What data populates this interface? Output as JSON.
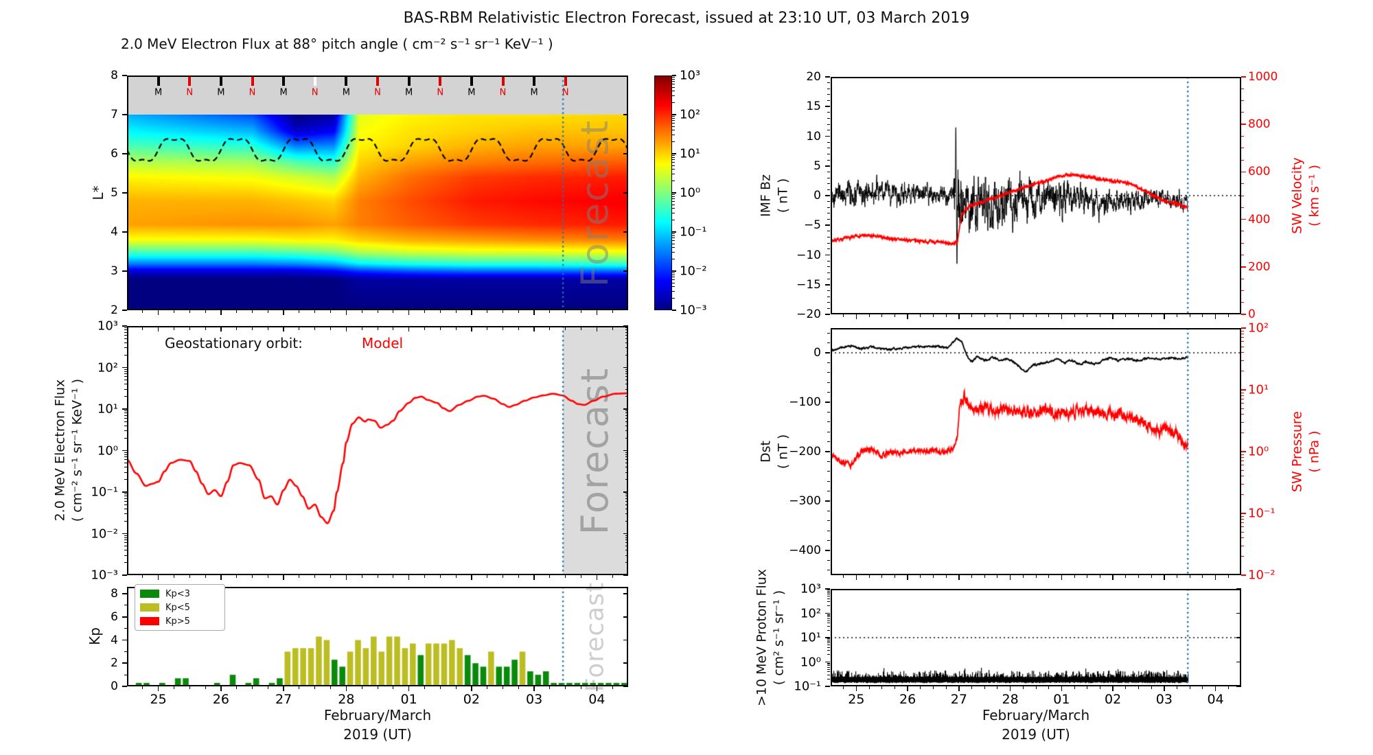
{
  "title": "BAS-RBM Relativistic Electron Forecast, issued at 23:10 UT, 03 March 2019",
  "colors": {
    "model_red": "#ff0000",
    "forecast_blue": "#1f77b4",
    "kp_green": "#0a8a0a",
    "kp_olive": "#bcbd22",
    "kp_red": "#ff0000",
    "day_night_band_gray": "#d3d3d3",
    "forecast_band_gray": "#dcdcdc",
    "marker_n_red": "#e00000",
    "axis_black": "#000000"
  },
  "xaxis": {
    "tick_labels": [
      "25",
      "26",
      "27",
      "28",
      "01",
      "02",
      "03",
      "04"
    ],
    "tick_days": [
      25,
      26,
      27,
      28,
      29,
      30,
      31,
      32
    ],
    "label_line1": "February/March",
    "label_line2": "2019 (UT)",
    "range_days": [
      24.5,
      32.5
    ]
  },
  "forecast": {
    "label": "Forecast",
    "start_day": 31.46
  },
  "panels": {
    "heatmap": {
      "title": "2.0 MeV Electron Flux at 88° pitch angle ( cm⁻² s⁻¹ sr⁻¹ KeV⁻¹ )",
      "ylabel": "L*",
      "ytick_values": [
        8,
        7,
        6,
        5,
        4,
        3,
        2
      ],
      "colorbar_tick_labels": [
        "10³",
        "10²",
        "10¹",
        "10⁰",
        "10⁻¹",
        "10⁻²",
        "10⁻³"
      ],
      "colorbar_tick_exponents": [
        3,
        2,
        1,
        0,
        -1,
        -2,
        -3
      ]
    },
    "electron_flux": {
      "annotation_black": "Geostationary orbit:",
      "annotation_red": "Model",
      "ylabel_line1": "2.0 MeV Electron Flux",
      "ylabel_line2": "( cm⁻² s⁻¹ sr⁻¹ KeV⁻¹ )",
      "ytick_labels": [
        "10³",
        "10²",
        "10¹",
        "10⁰",
        "10⁻¹",
        "10⁻²",
        "10⁻³"
      ],
      "ytick_exponents": [
        3,
        2,
        1,
        0,
        -1,
        -2,
        -3
      ]
    },
    "kp": {
      "ylabel": "Kp",
      "ytick_values": [
        8,
        6,
        4,
        2,
        0
      ],
      "legend": [
        {
          "label": "Kp<3",
          "color": "#0a8a0a"
        },
        {
          "label": "Kp<5",
          "color": "#bcbd22"
        },
        {
          "label": "Kp>5",
          "color": "#ff0000"
        }
      ]
    },
    "imf": {
      "ylabel_line1": "IMF Bz",
      "ylabel_line2": "( nT )",
      "ytick_values": [
        20,
        15,
        10,
        5,
        0,
        -5,
        -10,
        -15,
        -20
      ]
    },
    "sw_velocity": {
      "ylabel_line1": "SW Velocity",
      "ylabel_line2": "( km s⁻¹ )",
      "ytick_values": [
        1000,
        800,
        600,
        400,
        200,
        0
      ]
    },
    "dst": {
      "ylabel_line1": "Dst",
      "ylabel_line2": "( nT )",
      "ytick_values": [
        0,
        -100,
        -200,
        -300,
        -400
      ]
    },
    "sw_pressure": {
      "ylabel_line1": "SW Pressure",
      "ylabel_line2": "( nPa )",
      "ytick_labels": [
        "10²",
        "10¹",
        "10⁰",
        "10⁻¹",
        "10⁻²"
      ],
      "ytick_exponents": [
        2,
        1,
        0,
        -1,
        -2
      ]
    },
    "proton": {
      "ylabel_line1": ">10 MeV Proton Flux",
      "ylabel_line2": "( cm² s⁻¹ sr⁻¹ )",
      "ytick_labels": [
        "10³",
        "10²",
        "10¹",
        "10⁰",
        "10⁻¹"
      ],
      "ytick_exponents": [
        3,
        2,
        1,
        0,
        -1
      ]
    }
  },
  "chart_data": [
    {
      "id": "electron_flux_heatmap",
      "type": "heatmap",
      "title": "2.0 MeV Electron Flux at 88° pitch angle",
      "units": "cm⁻² s⁻¹ sr⁻¹ KeV⁻¹",
      "xlabel": "February/March 2019 (UT)",
      "ylabel": "L*",
      "x_range_days": [
        24.5,
        32.5
      ],
      "y_range_lstar": [
        2,
        7
      ],
      "color_scale": {
        "type": "log10",
        "range": [
          -3,
          3
        ],
        "palette": "jet"
      },
      "grid": {
        "days": [
          24.5,
          26.5,
          27.2,
          27.8,
          28.2,
          29.0,
          30.0,
          31.0,
          32.5
        ],
        "lstar": [
          2.0,
          2.8,
          3.0,
          3.2,
          3.5,
          3.8,
          4.2,
          4.8,
          5.4,
          5.8,
          6.2,
          6.6,
          7.0
        ],
        "log10_flux": [
          [
            -3,
            -3,
            -2.5,
            -1.5,
            -0.3,
            0.7,
            1.3,
            1.2,
            0.8,
            0.3,
            -0.3,
            -0.8,
            -1.2
          ],
          [
            -3,
            -3,
            -2.5,
            -1.5,
            -0.3,
            0.7,
            1.4,
            1.2,
            0.7,
            0.2,
            -0.5,
            -1.2,
            -1.8
          ],
          [
            -3,
            -3,
            -2.5,
            -1.4,
            -0.2,
            0.8,
            1.4,
            1.1,
            0.5,
            -0.3,
            -1.5,
            -2.6,
            -3.0
          ],
          [
            -3,
            -3,
            -2.3,
            -1.2,
            0.0,
            0.8,
            1.3,
            1.0,
            0.3,
            -0.5,
            -1.4,
            -2.3,
            -2.8
          ],
          [
            -3,
            -2.8,
            -2.0,
            -0.8,
            0.3,
            1.0,
            1.5,
            1.5,
            1.2,
            1.0,
            0.8,
            0.7,
            0.6
          ],
          [
            -3,
            -2.8,
            -1.8,
            -0.6,
            0.5,
            1.2,
            1.7,
            1.8,
            1.6,
            1.3,
            1.0,
            0.9,
            0.8
          ],
          [
            -3,
            -2.8,
            -1.7,
            -0.5,
            0.6,
            1.3,
            1.9,
            2.1,
            1.9,
            1.5,
            1.2,
            1.0,
            0.9
          ],
          [
            -3,
            -2.8,
            -1.7,
            -0.5,
            0.6,
            1.4,
            2.0,
            2.2,
            2.0,
            1.6,
            1.3,
            1.1,
            0.9
          ],
          [
            -3,
            -2.8,
            -1.7,
            -0.4,
            0.7,
            1.5,
            2.1,
            2.3,
            2.1,
            1.7,
            1.3,
            1.1,
            1.0
          ]
        ]
      },
      "orbit_line": {
        "base_lstar": 6.1,
        "daily_amplitude": 0.32,
        "harmonic3_amplitude": 0.07,
        "period_days": 1
      },
      "day_night_markers": {
        "start_day": 25.0,
        "step_days": 0.5,
        "count": 14,
        "labels": [
          "M",
          "N"
        ],
        "white_tick_day": 27.5
      }
    },
    {
      "id": "electron_flux_geo",
      "type": "line",
      "series_label": "Model",
      "color": "#ff0000",
      "ylim_log10": [
        -3,
        3
      ],
      "t_days": [
        24.5,
        24.65,
        24.8,
        24.9,
        25.0,
        25.1,
        25.2,
        25.35,
        25.5,
        25.6,
        25.7,
        25.8,
        25.9,
        26.0,
        26.1,
        26.2,
        26.3,
        26.45,
        26.6,
        26.7,
        26.8,
        26.9,
        27.0,
        27.1,
        27.2,
        27.3,
        27.4,
        27.5,
        27.6,
        27.7,
        27.8,
        27.85,
        27.95,
        28.0,
        28.1,
        28.2,
        28.3,
        28.35,
        28.45,
        28.55,
        28.65,
        28.75,
        28.85,
        29.0,
        29.1,
        29.2,
        29.3,
        29.45,
        29.55,
        29.65,
        29.8,
        29.95,
        30.1,
        30.2,
        30.35,
        30.5,
        30.6,
        30.7,
        30.85,
        31.0,
        31.15,
        31.3,
        31.45,
        31.6,
        31.7,
        31.8,
        31.95,
        32.1,
        32.3,
        32.5
      ],
      "log10_flux": [
        -0.22,
        -0.55,
        -0.85,
        -0.8,
        -0.75,
        -0.5,
        -0.3,
        -0.22,
        -0.25,
        -0.5,
        -0.8,
        -1.05,
        -0.95,
        -1.1,
        -0.75,
        -0.35,
        -0.3,
        -0.35,
        -0.7,
        -1.15,
        -1.1,
        -1.3,
        -0.95,
        -0.7,
        -0.85,
        -1.1,
        -1.4,
        -1.3,
        -1.6,
        -1.75,
        -1.45,
        -1.0,
        -0.3,
        0.2,
        0.65,
        0.8,
        0.7,
        0.75,
        0.72,
        0.55,
        0.62,
        0.72,
        0.95,
        1.15,
        1.27,
        1.3,
        1.22,
        1.15,
        1.02,
        0.95,
        1.1,
        1.2,
        1.3,
        1.32,
        1.25,
        1.12,
        1.05,
        1.1,
        1.2,
        1.28,
        1.33,
        1.37,
        1.33,
        1.2,
        1.12,
        1.1,
        1.2,
        1.3,
        1.37,
        1.38
      ]
    },
    {
      "id": "kp",
      "type": "bar",
      "ylabel": "Kp",
      "ylim": [
        0,
        9
      ],
      "bin_days": 0.125,
      "t_start_day": 24.5,
      "color_rule": {
        "lt3": "#0a8a0a",
        "lt5": "#bcbd22",
        "gt5": "#ff0000"
      },
      "values": [
        0,
        0.3,
        0.3,
        0,
        0.3,
        0,
        0.7,
        0.7,
        0,
        0,
        0,
        0.3,
        0,
        1.0,
        0,
        0.3,
        0.7,
        0,
        0.3,
        0.7,
        3.0,
        3.3,
        3.3,
        3.3,
        4.3,
        4.0,
        2.3,
        1.7,
        3.0,
        4.0,
        3.3,
        4.3,
        3.0,
        4.3,
        4.3,
        3.3,
        3.7,
        2.7,
        3.7,
        3.7,
        3.7,
        4.0,
        3.3,
        2.7,
        2.0,
        1.7,
        3.0,
        1.7,
        1.7,
        2.3,
        3.0,
        1.3,
        1.0,
        1.3,
        0.3,
        0.3,
        0.3,
        0.3,
        0.3,
        0.3,
        0.3,
        0.3,
        0.3,
        0.3
      ]
    },
    {
      "id": "imf_bz",
      "type": "line-noisy",
      "color": "#000000",
      "ylim_nT": [
        -20,
        20
      ],
      "envelope_t": [
        24.5,
        25.5,
        26.5,
        26.88,
        26.95,
        27.1,
        27.4,
        27.8,
        28.2,
        28.7,
        29.2,
        29.6,
        30.0,
        30.5,
        31.0,
        31.46
      ],
      "envelope_mean_nT": [
        0.3,
        0.5,
        0.2,
        0.2,
        -0.5,
        -1.0,
        -1.5,
        -1.0,
        -0.8,
        0.0,
        -0.5,
        -1.2,
        -1.0,
        -0.8,
        -0.3,
        -1.2
      ],
      "envelope_amp_nT": [
        3.2,
        3.2,
        2.4,
        2.2,
        11.5,
        7.5,
        7.5,
        6.5,
        5.5,
        5.0,
        4.5,
        4.0,
        3.2,
        2.8,
        2.5,
        2.2
      ],
      "spike": {
        "t_day": 26.95,
        "max_nT": 11.5,
        "min_nT": -11.5
      },
      "zero_guide_line": 0
    },
    {
      "id": "sw_velocity",
      "type": "line",
      "color": "#ff0000",
      "ylim_km_s": [
        0,
        1000
      ],
      "t_days": [
        24.5,
        24.8,
        25.1,
        25.4,
        25.7,
        26.0,
        26.3,
        26.6,
        26.9,
        26.97,
        27.05,
        27.2,
        27.4,
        27.6,
        27.9,
        28.2,
        28.5,
        28.8,
        29.0,
        29.2,
        29.4,
        29.6,
        29.8,
        30.0,
        30.2,
        30.4,
        30.6,
        30.8,
        31.0,
        31.2,
        31.46
      ],
      "km_s": [
        310,
        320,
        332,
        328,
        318,
        312,
        308,
        303,
        298,
        305,
        420,
        455,
        470,
        485,
        505,
        530,
        550,
        570,
        585,
        590,
        582,
        575,
        568,
        562,
        558,
        545,
        522,
        500,
        480,
        468,
        450
      ]
    },
    {
      "id": "dst",
      "type": "line",
      "color": "#000000",
      "ylim_nT": [
        -450,
        50
      ],
      "zero_guide_line": 0,
      "t_days": [
        24.5,
        24.7,
        24.9,
        25.1,
        25.3,
        25.6,
        25.9,
        26.2,
        26.5,
        26.8,
        26.95,
        27.05,
        27.15,
        27.25,
        27.35,
        27.5,
        27.65,
        27.8,
        27.95,
        28.1,
        28.2,
        28.3,
        28.45,
        28.6,
        28.75,
        28.9,
        29.05,
        29.2,
        29.35,
        29.5,
        29.65,
        29.8,
        29.95,
        30.1,
        30.3,
        30.5,
        30.7,
        30.9,
        31.1,
        31.3,
        31.46
      ],
      "nT": [
        5,
        10,
        14,
        8,
        12,
        6,
        10,
        12,
        14,
        10,
        30,
        22,
        -5,
        -18,
        -8,
        -16,
        -10,
        -14,
        -12,
        -20,
        -30,
        -40,
        -25,
        -22,
        -18,
        -12,
        -20,
        -15,
        -22,
        -18,
        -24,
        -16,
        -10,
        -16,
        -12,
        -16,
        -10,
        -13,
        -10,
        -13,
        -8
      ]
    },
    {
      "id": "sw_pressure",
      "type": "line",
      "color": "#ff0000",
      "ylim_log10_nPa": [
        -2,
        2
      ],
      "t_days": [
        24.5,
        24.7,
        24.9,
        25.1,
        25.3,
        25.5,
        25.7,
        25.9,
        26.1,
        26.3,
        26.5,
        26.7,
        26.9,
        26.97,
        27.03,
        27.1,
        27.2,
        27.35,
        27.5,
        27.7,
        27.9,
        28.1,
        28.4,
        28.7,
        29.0,
        29.3,
        29.6,
        29.9,
        30.1,
        30.4,
        30.7,
        30.9,
        31.1,
        31.3,
        31.46
      ],
      "nPa": [
        0.95,
        0.7,
        0.6,
        1.0,
        1.1,
        0.85,
        1.0,
        0.95,
        1.05,
        1.0,
        1.05,
        1.0,
        1.1,
        1.8,
        6.0,
        8.5,
        5.0,
        4.5,
        5.0,
        4.6,
        4.8,
        4.5,
        4.3,
        4.6,
        4.2,
        4.5,
        4.8,
        4.0,
        4.2,
        3.4,
        2.6,
        2.1,
        2.4,
        1.8,
        1.1
      ]
    },
    {
      "id": "proton_flux",
      "type": "noisy-band",
      "color": "#000000",
      "ylim_log10": [
        -1,
        3
      ],
      "t_range_days": [
        24.5,
        31.46
      ],
      "log10_flux_band": [
        -0.87,
        -0.35
      ],
      "guide_line_log10": 1
    }
  ]
}
